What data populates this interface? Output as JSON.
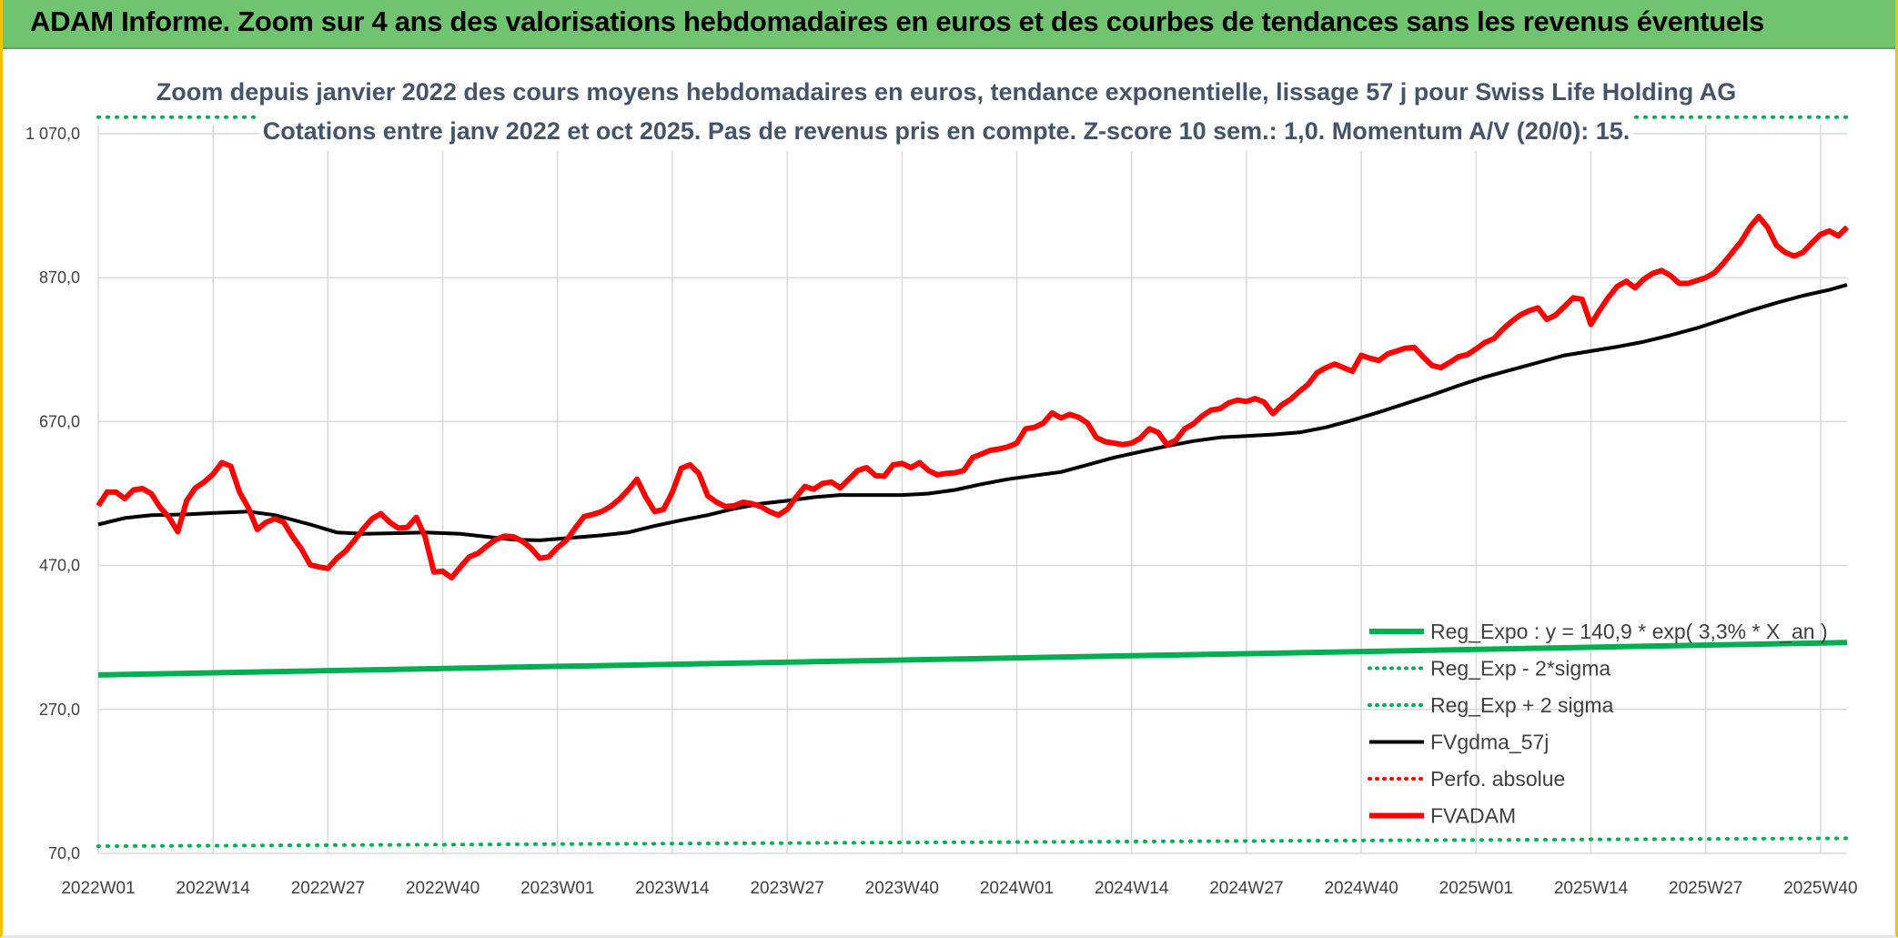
{
  "header": {
    "title": "ADAM Informe. Zoom sur 4 ans des valorisations hebdomadaires en euros et des courbes de tendances sans les revenus éventuels"
  },
  "chart_data": {
    "type": "line",
    "title_line1": "Zoom depuis janvier 2022 des cours moyens hebdomadaires en euros, tendance exponentielle, lissage 57 j pour Swiss Life Holding AG",
    "title_line2": "Cotations entre janv 2022 et oct 2025. Pas de revenus pris en compte. Z-score 10 sem.: 1,0. Momentum A/V (20/0): 15.",
    "ylim": [
      70,
      1070
    ],
    "y_ticks": [
      70,
      270,
      470,
      670,
      870,
      1070
    ],
    "y_tick_labels": [
      "70,0",
      "270,0",
      "470,0",
      "670,0",
      "870,0",
      "1 070,0"
    ],
    "x_tick_labels": [
      "2022W01",
      "2022W14",
      "2022W27",
      "2022W40",
      "2023W01",
      "2023W14",
      "2023W27",
      "2023W40",
      "2024W01",
      "2024W14",
      "2024W27",
      "2024W40",
      "2025W01",
      "2025W14",
      "2025W27",
      "2025W40"
    ],
    "weeks_total": 199,
    "legend_position": "bottom-right",
    "legend": [
      {
        "key": "reg_expo",
        "label": "Reg_Expo : y = 140,9 * exp( 3,3% *  X_an )",
        "color": "#00b050",
        "style": "solid"
      },
      {
        "key": "reg_lower",
        "label": "Reg_Exp - 2*sigma",
        "color": "#00b050",
        "style": "dotted"
      },
      {
        "key": "reg_upper",
        "label": "Reg_Exp + 2 sigma",
        "color": "#00b050",
        "style": "dotted"
      },
      {
        "key": "fvgdma",
        "label": "FVgdma_57j",
        "color": "#000000",
        "style": "solid"
      },
      {
        "key": "perfo",
        "label": "Perfo. absolue",
        "color": "#ff0000",
        "style": "dotted"
      },
      {
        "key": "fvadam",
        "label": "FVADAM",
        "color": "#ff0000",
        "style": "solid"
      }
    ],
    "series": [
      {
        "name": "Reg_Expo",
        "key": "reg_expo",
        "start_value": 318,
        "end_value": 363
      },
      {
        "name": "Reg_Exp - 2*sigma",
        "key": "reg_lower",
        "start_value": 80,
        "end_value": 91
      },
      {
        "name": "Reg_Exp + 2 sigma",
        "key": "reg_upper",
        "start_value": 1093,
        "end_value": 1093
      },
      {
        "name": "FVgdma_57j",
        "key": "fvgdma",
        "points": [
          [
            0,
            527
          ],
          [
            3,
            536
          ],
          [
            6,
            540
          ],
          [
            10,
            541
          ],
          [
            13,
            543
          ],
          [
            17,
            545
          ],
          [
            20,
            540
          ],
          [
            24,
            527
          ],
          [
            27,
            516
          ],
          [
            30,
            514
          ],
          [
            34,
            515
          ],
          [
            37,
            516
          ],
          [
            41,
            514
          ],
          [
            44,
            510
          ],
          [
            47,
            506
          ],
          [
            50,
            505
          ],
          [
            54,
            509
          ],
          [
            57,
            512
          ],
          [
            60,
            516
          ],
          [
            63,
            525
          ],
          [
            66,
            533
          ],
          [
            69,
            540
          ],
          [
            72,
            549
          ],
          [
            75,
            556
          ],
          [
            78,
            560
          ],
          [
            81,
            565
          ],
          [
            84,
            568
          ],
          [
            87,
            568
          ],
          [
            91,
            568
          ],
          [
            94,
            570
          ],
          [
            97,
            575
          ],
          [
            100,
            583
          ],
          [
            103,
            590
          ],
          [
            106,
            595
          ],
          [
            109,
            600
          ],
          [
            112,
            610
          ],
          [
            115,
            620
          ],
          [
            118,
            628
          ],
          [
            121,
            636
          ],
          [
            124,
            643
          ],
          [
            127,
            648
          ],
          [
            130,
            650
          ],
          [
            133,
            652
          ],
          [
            136,
            655
          ],
          [
            139,
            662
          ],
          [
            142,
            672
          ],
          [
            145,
            683
          ],
          [
            148,
            695
          ],
          [
            151,
            707
          ],
          [
            154,
            720
          ],
          [
            157,
            732
          ],
          [
            160,
            742
          ],
          [
            163,
            752
          ],
          [
            166,
            762
          ],
          [
            169,
            768
          ],
          [
            172,
            774
          ],
          [
            175,
            781
          ],
          [
            178,
            790
          ],
          [
            181,
            800
          ],
          [
            184,
            812
          ],
          [
            187,
            824
          ],
          [
            190,
            835
          ],
          [
            193,
            845
          ],
          [
            196,
            853
          ],
          [
            198,
            860
          ]
        ]
      },
      {
        "name": "FVADAM",
        "key": "fvadam",
        "points": [
          [
            0,
            553
          ],
          [
            1,
            572
          ],
          [
            2,
            572
          ],
          [
            3,
            563
          ],
          [
            4,
            575
          ],
          [
            5,
            577
          ],
          [
            6,
            570
          ],
          [
            7,
            551
          ],
          [
            8,
            537
          ],
          [
            9,
            517
          ],
          [
            10,
            560
          ],
          [
            11,
            578
          ],
          [
            12,
            586
          ],
          [
            13,
            597
          ],
          [
            14,
            613
          ],
          [
            15,
            608
          ],
          [
            16,
            572
          ],
          [
            17,
            550
          ],
          [
            18,
            520
          ],
          [
            19,
            530
          ],
          [
            20,
            535
          ],
          [
            21,
            530
          ],
          [
            22,
            510
          ],
          [
            23,
            493
          ],
          [
            24,
            471
          ],
          [
            25,
            468
          ],
          [
            26,
            466
          ],
          [
            27,
            480
          ],
          [
            28,
            490
          ],
          [
            29,
            505
          ],
          [
            30,
            521
          ],
          [
            31,
            535
          ],
          [
            32,
            542
          ],
          [
            33,
            530
          ],
          [
            34,
            522
          ],
          [
            35,
            523
          ],
          [
            36,
            537
          ],
          [
            37,
            510
          ],
          [
            38,
            461
          ],
          [
            39,
            462
          ],
          [
            40,
            453
          ],
          [
            41,
            468
          ],
          [
            42,
            482
          ],
          [
            43,
            487
          ],
          [
            44,
            497
          ],
          [
            45,
            506
          ],
          [
            46,
            511
          ],
          [
            47,
            510
          ],
          [
            48,
            504
          ],
          [
            49,
            494
          ],
          [
            50,
            480
          ],
          [
            51,
            482
          ],
          [
            52,
            495
          ],
          [
            53,
            505
          ],
          [
            54,
            522
          ],
          [
            55,
            538
          ],
          [
            56,
            541
          ],
          [
            57,
            545
          ],
          [
            58,
            552
          ],
          [
            59,
            562
          ],
          [
            60,
            575
          ],
          [
            61,
            590
          ],
          [
            62,
            565
          ],
          [
            63,
            545
          ],
          [
            64,
            548
          ],
          [
            65,
            572
          ],
          [
            66,
            605
          ],
          [
            67,
            610
          ],
          [
            68,
            598
          ],
          [
            69,
            567
          ],
          [
            70,
            558
          ],
          [
            71,
            552
          ],
          [
            72,
            553
          ],
          [
            73,
            558
          ],
          [
            74,
            556
          ],
          [
            75,
            552
          ],
          [
            76,
            545
          ],
          [
            77,
            540
          ],
          [
            78,
            548
          ],
          [
            79,
            565
          ],
          [
            80,
            580
          ],
          [
            81,
            576
          ],
          [
            82,
            584
          ],
          [
            83,
            586
          ],
          [
            84,
            578
          ],
          [
            85,
            590
          ],
          [
            86,
            602
          ],
          [
            87,
            606
          ],
          [
            88,
            595
          ],
          [
            89,
            594
          ],
          [
            90,
            610
          ],
          [
            91,
            612
          ],
          [
            92,
            606
          ],
          [
            93,
            613
          ],
          [
            94,
            602
          ],
          [
            95,
            596
          ],
          [
            96,
            598
          ],
          [
            97,
            599
          ],
          [
            98,
            602
          ],
          [
            99,
            620
          ],
          [
            100,
            625
          ],
          [
            101,
            630
          ],
          [
            102,
            632
          ],
          [
            103,
            635
          ],
          [
            104,
            640
          ],
          [
            105,
            660
          ],
          [
            106,
            662
          ],
          [
            107,
            668
          ],
          [
            108,
            682
          ],
          [
            109,
            675
          ],
          [
            110,
            680
          ],
          [
            111,
            676
          ],
          [
            112,
            668
          ],
          [
            113,
            648
          ],
          [
            114,
            642
          ],
          [
            115,
            640
          ],
          [
            116,
            638
          ],
          [
            117,
            640
          ],
          [
            118,
            647
          ],
          [
            119,
            660
          ],
          [
            120,
            655
          ],
          [
            121,
            638
          ],
          [
            122,
            644
          ],
          [
            123,
            660
          ],
          [
            124,
            667
          ],
          [
            125,
            678
          ],
          [
            126,
            686
          ],
          [
            127,
            688
          ],
          [
            128,
            696
          ],
          [
            129,
            700
          ],
          [
            130,
            698
          ],
          [
            131,
            702
          ],
          [
            132,
            697
          ],
          [
            133,
            681
          ],
          [
            134,
            693
          ],
          [
            135,
            701
          ],
          [
            136,
            712
          ],
          [
            137,
            722
          ],
          [
            138,
            738
          ],
          [
            139,
            745
          ],
          [
            140,
            750
          ],
          [
            141,
            745
          ],
          [
            142,
            740
          ],
          [
            143,
            762
          ],
          [
            144,
            758
          ],
          [
            145,
            755
          ],
          [
            146,
            764
          ],
          [
            147,
            768
          ],
          [
            148,
            772
          ],
          [
            149,
            773
          ],
          [
            150,
            760
          ],
          [
            151,
            748
          ],
          [
            152,
            745
          ],
          [
            153,
            752
          ],
          [
            154,
            760
          ],
          [
            155,
            763
          ],
          [
            156,
            771
          ],
          [
            157,
            780
          ],
          [
            158,
            785
          ],
          [
            159,
            798
          ],
          [
            160,
            809
          ],
          [
            161,
            818
          ],
          [
            162,
            824
          ],
          [
            163,
            828
          ],
          [
            164,
            812
          ],
          [
            165,
            818
          ],
          [
            166,
            830
          ],
          [
            167,
            842
          ],
          [
            168,
            840
          ],
          [
            169,
            805
          ],
          [
            170,
            825
          ],
          [
            171,
            843
          ],
          [
            172,
            858
          ],
          [
            173,
            865
          ],
          [
            174,
            856
          ],
          [
            175,
            868
          ],
          [
            176,
            876
          ],
          [
            177,
            880
          ],
          [
            178,
            873
          ],
          [
            179,
            862
          ],
          [
            180,
            862
          ],
          [
            181,
            866
          ],
          [
            182,
            870
          ],
          [
            183,
            877
          ],
          [
            184,
            890
          ],
          [
            185,
            905
          ],
          [
            186,
            920
          ],
          [
            187,
            940
          ],
          [
            188,
            955
          ],
          [
            189,
            940
          ],
          [
            190,
            915
          ],
          [
            191,
            905
          ],
          [
            192,
            900
          ],
          [
            193,
            905
          ],
          [
            194,
            918
          ],
          [
            195,
            930
          ],
          [
            196,
            935
          ],
          [
            197,
            928
          ],
          [
            198,
            940
          ]
        ]
      }
    ]
  }
}
